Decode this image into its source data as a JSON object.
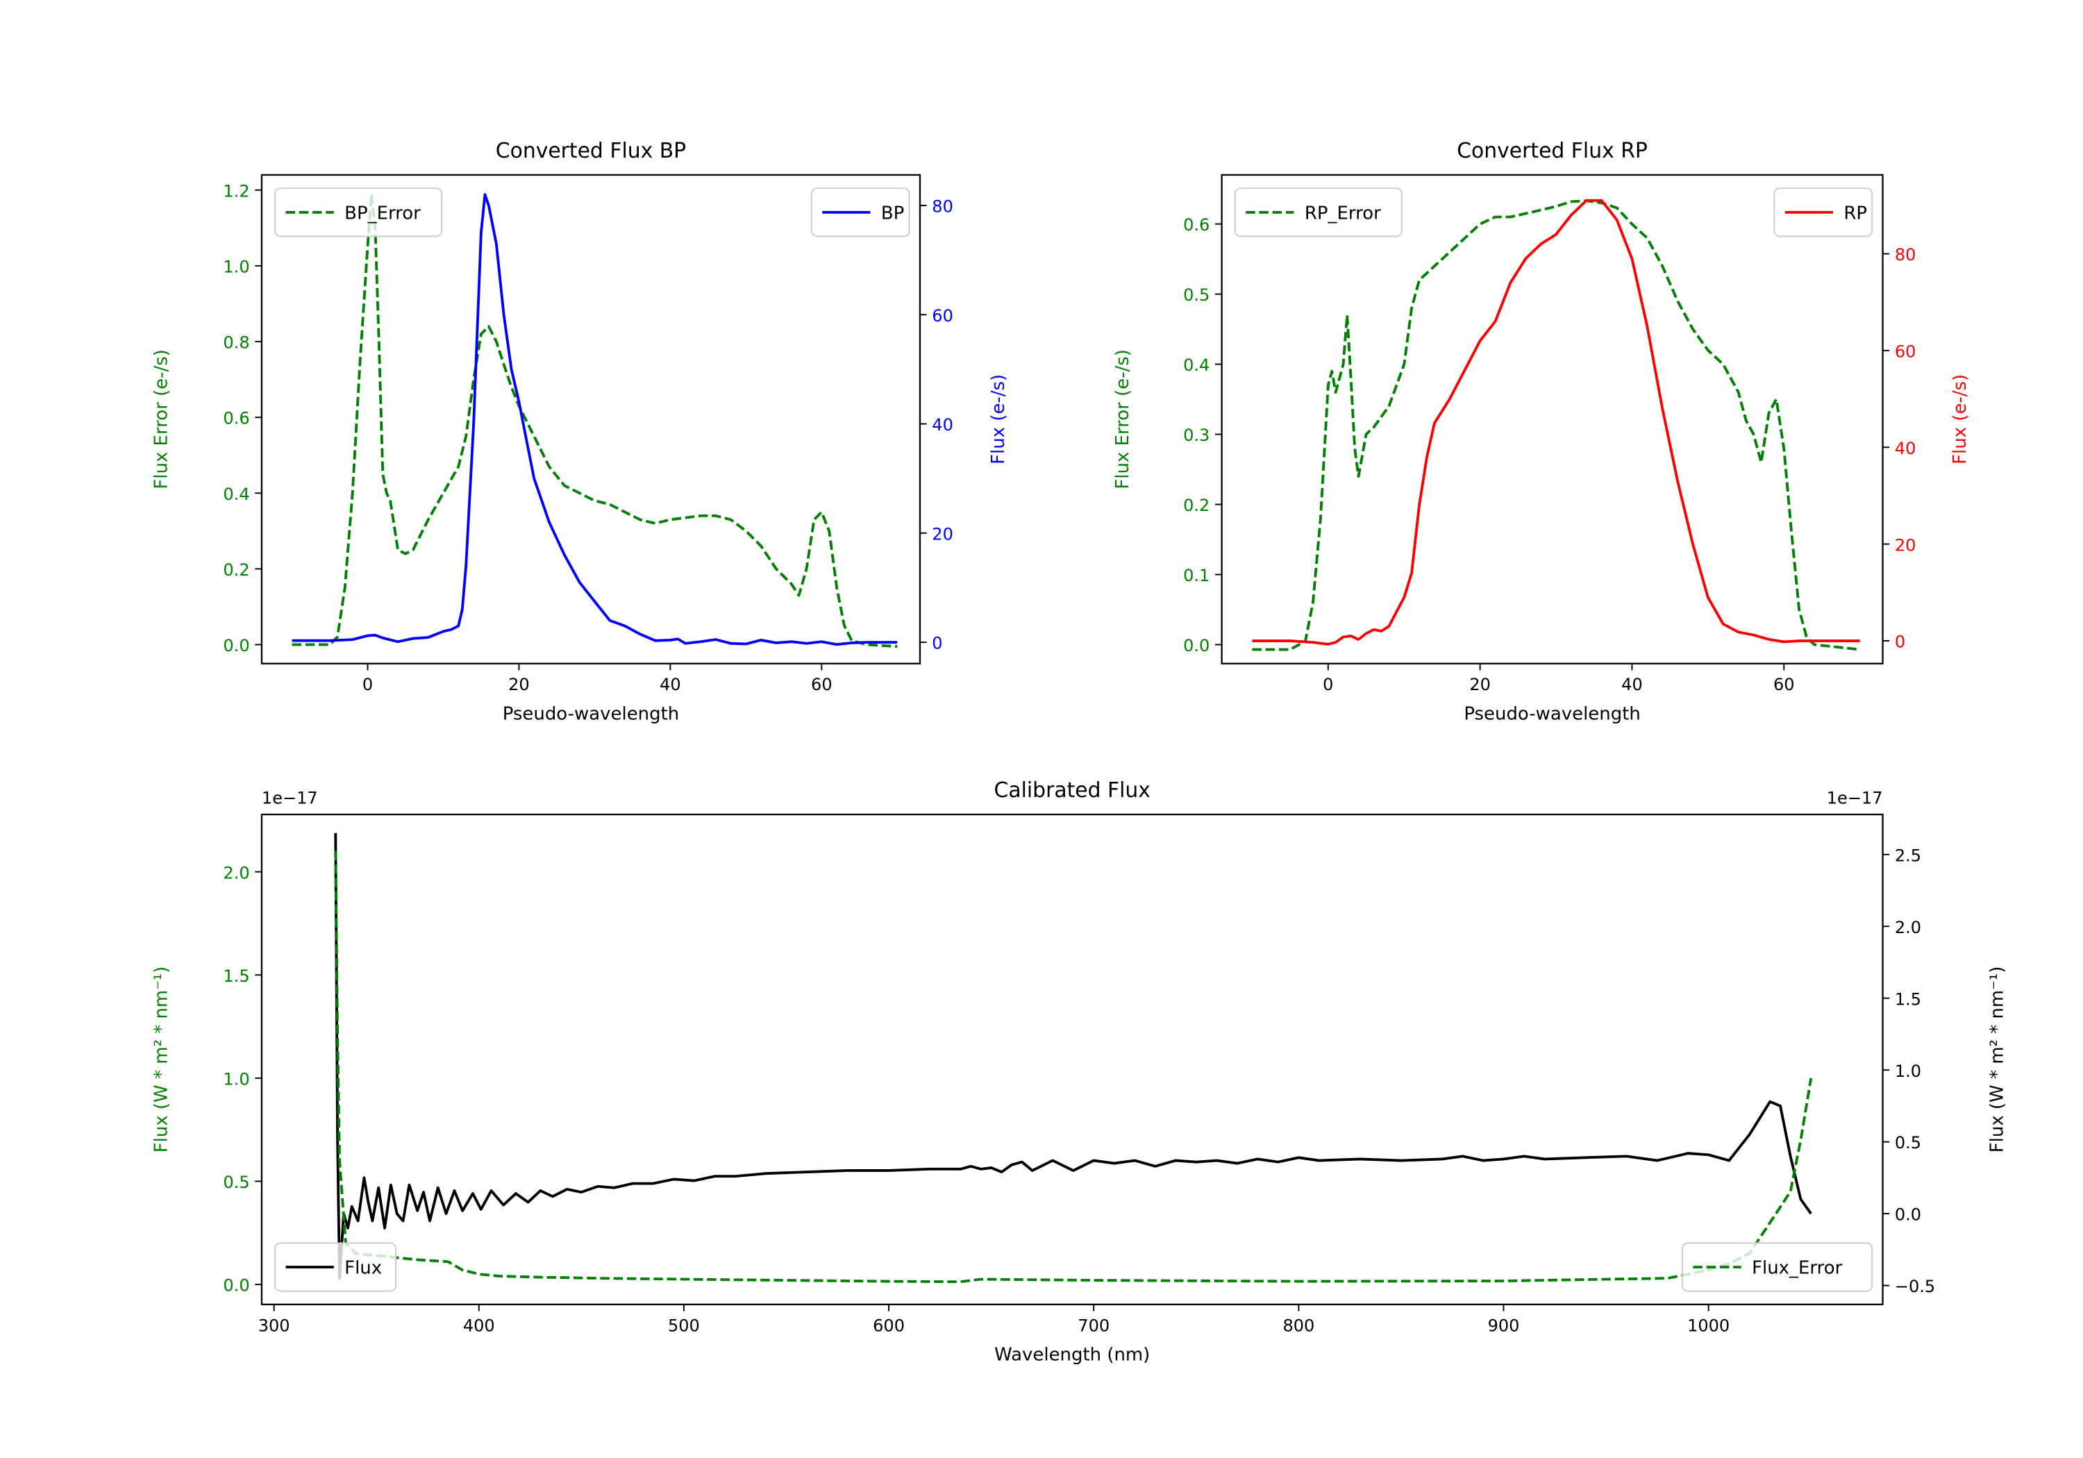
{
  "colors": {
    "bp": "#0000ff",
    "rp": "#ff0000",
    "error": "#008000",
    "flux": "#000000"
  },
  "chart_data": [
    {
      "type": "line",
      "title": "Converted Flux BP",
      "xlabel": "Pseudo-wavelength",
      "ylabel_left": "Flux Error (e-/s)",
      "ylabel_right": "Flux (e-/s)",
      "xlim": [
        -14,
        73
      ],
      "ylim_left": [
        -0.05,
        1.24
      ],
      "ylim_right": [
        -3.9,
        85.6
      ],
      "xticks": [
        0,
        20,
        40,
        60
      ],
      "yticks_left": [
        0.0,
        0.2,
        0.4,
        0.6,
        0.8,
        1.0,
        1.2
      ],
      "yticks_right": [
        0,
        20,
        40,
        60,
        80
      ],
      "xtick_labels": [
        "0",
        "20",
        "40",
        "60"
      ],
      "ytick_labels_left": [
        "0.0",
        "0.2",
        "0.4",
        "0.6",
        "0.8",
        "1.0",
        "1.2"
      ],
      "ytick_labels_right": [
        "0",
        "20",
        "40",
        "60",
        "80"
      ],
      "series": [
        {
          "name": "BP_Error",
          "axis": "left",
          "style": "dashed",
          "color": "#008000",
          "legend": "upper left",
          "x": [
            -10,
            -5,
            -4,
            -3,
            -2,
            -1,
            0,
            0.5,
            1,
            1.5,
            2,
            2.5,
            3,
            4,
            5,
            6,
            8,
            10,
            12,
            13,
            14,
            15,
            16,
            17,
            18,
            19,
            20,
            22,
            24,
            26,
            28,
            30,
            32,
            34,
            36,
            38,
            40,
            44,
            46,
            48,
            50,
            52,
            54,
            56,
            57,
            58,
            59,
            60,
            61,
            62,
            63,
            64,
            66,
            70
          ],
          "y": [
            0,
            0,
            0.02,
            0.15,
            0.4,
            0.75,
            1.05,
            1.19,
            1.1,
            0.8,
            0.45,
            0.4,
            0.38,
            0.25,
            0.24,
            0.25,
            0.33,
            0.4,
            0.47,
            0.55,
            0.7,
            0.82,
            0.84,
            0.8,
            0.74,
            0.68,
            0.63,
            0.55,
            0.47,
            0.42,
            0.4,
            0.38,
            0.37,
            0.35,
            0.33,
            0.32,
            0.33,
            0.34,
            0.34,
            0.33,
            0.3,
            0.26,
            0.2,
            0.16,
            0.13,
            0.2,
            0.33,
            0.35,
            0.3,
            0.15,
            0.05,
            0.01,
            0,
            -0.005
          ]
        },
        {
          "name": "BP",
          "axis": "right",
          "style": "solid",
          "color": "#0000ff",
          "legend": "upper right",
          "x": [
            -10,
            -5,
            -2,
            0,
            1,
            2,
            4,
            6,
            8,
            10,
            11,
            12,
            12.5,
            13,
            14,
            15,
            15.5,
            16,
            17,
            18,
            19,
            20,
            21,
            22,
            24,
            26,
            28,
            30,
            32,
            34,
            36,
            38,
            40,
            41,
            42,
            44,
            46,
            48,
            50,
            52,
            54,
            56,
            58,
            60,
            62,
            64,
            66,
            70
          ],
          "y": [
            0.3,
            0.3,
            0.5,
            1.2,
            1.3,
            0.8,
            0.1,
            0.7,
            0.9,
            2,
            2.3,
            3,
            6,
            14,
            40,
            75,
            82,
            80,
            73,
            60,
            50,
            44,
            37,
            30,
            22,
            16,
            11,
            7.5,
            4,
            3,
            1.5,
            0.3,
            0.4,
            0.6,
            -0.2,
            0.1,
            0.5,
            -0.2,
            -0.3,
            0.4,
            -0.1,
            0.1,
            -0.2,
            0.1,
            -0.4,
            -0.1,
            0,
            0
          ]
        }
      ]
    },
    {
      "type": "line",
      "title": "Converted Flux RP",
      "xlabel": "Pseudo-wavelength",
      "ylabel_left": "Flux Error (e-/s)",
      "ylabel_right": "Flux (e-/s)",
      "xlim": [
        -14,
        73
      ],
      "ylim_left": [
        -0.027,
        0.67
      ],
      "ylim_right": [
        -4.7,
        96.3
      ],
      "xticks": [
        0,
        20,
        40,
        60
      ],
      "yticks_left": [
        0.0,
        0.1,
        0.2,
        0.3,
        0.4,
        0.5,
        0.6
      ],
      "yticks_right": [
        0,
        20,
        40,
        60,
        80
      ],
      "xtick_labels": [
        "0",
        "20",
        "40",
        "60"
      ],
      "ytick_labels_left": [
        "0.0",
        "0.1",
        "0.2",
        "0.3",
        "0.4",
        "0.5",
        "0.6"
      ],
      "ytick_labels_right": [
        "0",
        "20",
        "40",
        "60",
        "80"
      ],
      "series": [
        {
          "name": "RP_Error",
          "axis": "left",
          "style": "dashed",
          "color": "#008000",
          "legend": "upper left",
          "x": [
            -10,
            -5,
            -3,
            -2,
            -1,
            0,
            0.5,
            1,
            2,
            2.5,
            3,
            3.5,
            4,
            5,
            6,
            8,
            10,
            11,
            12,
            14,
            16,
            18,
            20,
            22,
            24,
            26,
            28,
            30,
            32,
            34,
            36,
            38,
            40,
            42,
            44,
            46,
            48,
            50,
            52,
            54,
            55,
            56,
            57,
            58,
            59,
            60,
            61,
            62,
            63,
            64,
            70
          ],
          "y": [
            -0.007,
            -0.007,
            0.005,
            0.06,
            0.18,
            0.37,
            0.39,
            0.36,
            0.4,
            0.47,
            0.38,
            0.28,
            0.24,
            0.3,
            0.31,
            0.34,
            0.4,
            0.48,
            0.52,
            0.54,
            0.56,
            0.58,
            0.6,
            0.61,
            0.61,
            0.615,
            0.62,
            0.625,
            0.632,
            0.633,
            0.63,
            0.623,
            0.6,
            0.58,
            0.54,
            0.49,
            0.45,
            0.42,
            0.4,
            0.36,
            0.32,
            0.3,
            0.26,
            0.33,
            0.35,
            0.28,
            0.16,
            0.05,
            0.01,
            0,
            -0.007
          ]
        },
        {
          "name": "RP",
          "axis": "right",
          "style": "solid",
          "color": "#ff0000",
          "legend": "upper right",
          "x": [
            -10,
            -5,
            -2,
            0,
            1,
            2,
            3,
            4,
            5,
            6,
            7,
            8,
            9,
            10,
            11,
            12,
            13,
            14,
            16,
            18,
            20,
            22,
            24,
            26,
            28,
            30,
            32,
            34,
            36,
            38,
            40,
            42,
            44,
            46,
            48,
            50,
            52,
            54,
            56,
            58,
            60,
            62,
            70
          ],
          "y": [
            0,
            0,
            -0.3,
            -0.7,
            -0.3,
            0.8,
            1,
            0.3,
            1.5,
            2.3,
            2,
            3,
            6,
            9,
            14,
            28,
            38,
            45,
            50,
            56,
            62,
            66,
            74,
            79,
            82,
            84,
            88,
            91,
            91,
            87,
            79,
            65,
            48,
            33,
            20,
            9,
            3.5,
            1.8,
            1.2,
            0.3,
            -0.2,
            0,
            0
          ]
        }
      ]
    },
    {
      "type": "line",
      "title": "Calibrated Flux",
      "xlabel": "Wavelength (nm)",
      "ylabel_left": "Flux (W * m² * nm⁻¹)",
      "ylabel_right": "Flux (W * m² * nm⁻¹)",
      "offset_left": "1e−17",
      "offset_right": "1e−17",
      "xlim": [
        294,
        1085
      ],
      "ylim_left": [
        -0.097,
        2.278
      ],
      "ylim_right": [
        -0.632,
        2.779
      ],
      "xticks": [
        300,
        400,
        500,
        600,
        700,
        800,
        900,
        1000
      ],
      "yticks_left": [
        0.0,
        0.5,
        1.0,
        1.5,
        2.0
      ],
      "yticks_right": [
        -0.5,
        0.0,
        0.5,
        1.0,
        1.5,
        2.0,
        2.5
      ],
      "xtick_labels": [
        "300",
        "400",
        "500",
        "600",
        "700",
        "800",
        "900",
        "1000"
      ],
      "ytick_labels_left": [
        "0.0",
        "0.5",
        "1.0",
        "1.5",
        "2.0"
      ],
      "ytick_labels_right": [
        "−0.5",
        "0.0",
        "0.5",
        "1.0",
        "1.5",
        "2.0",
        "2.5"
      ],
      "series": [
        {
          "name": "Flux",
          "axis": "right",
          "style": "solid",
          "color": "#000000",
          "legend": "lower left",
          "x": [
            330,
            331,
            332,
            334,
            336,
            338,
            341,
            344,
            346,
            348,
            351,
            354,
            357,
            360,
            363,
            366,
            370,
            373,
            376,
            380,
            384,
            388,
            392,
            397,
            401,
            406,
            412,
            418,
            424,
            430,
            436,
            443,
            450,
            458,
            466,
            475,
            485,
            495,
            505,
            515,
            525,
            540,
            560,
            580,
            600,
            620,
            635,
            640,
            645,
            650,
            655,
            660,
            665,
            670,
            680,
            690,
            700,
            710,
            720,
            730,
            740,
            750,
            760,
            770,
            780,
            790,
            800,
            810,
            830,
            850,
            870,
            880,
            890,
            900,
            910,
            920,
            940,
            960,
            975,
            990,
            1000,
            1010,
            1020,
            1030,
            1035,
            1040,
            1045,
            1050
          ],
          "y": [
            2.65,
            0.5,
            -0.45,
            0,
            -0.1,
            0.05,
            -0.05,
            0.25,
            0.08,
            -0.05,
            0.18,
            -0.1,
            0.2,
            0,
            -0.05,
            0.2,
            0.02,
            0.15,
            -0.05,
            0.18,
            0,
            0.16,
            0.02,
            0.14,
            0.03,
            0.16,
            0.06,
            0.14,
            0.08,
            0.16,
            0.12,
            0.17,
            0.15,
            0.19,
            0.18,
            0.21,
            0.21,
            0.24,
            0.23,
            0.26,
            0.26,
            0.28,
            0.29,
            0.3,
            0.3,
            0.31,
            0.31,
            0.33,
            0.31,
            0.32,
            0.29,
            0.34,
            0.36,
            0.3,
            0.37,
            0.3,
            0.37,
            0.35,
            0.37,
            0.33,
            0.37,
            0.36,
            0.37,
            0.35,
            0.38,
            0.36,
            0.39,
            0.37,
            0.38,
            0.37,
            0.38,
            0.4,
            0.37,
            0.38,
            0.4,
            0.38,
            0.39,
            0.4,
            0.37,
            0.42,
            0.41,
            0.37,
            0.55,
            0.78,
            0.75,
            0.4,
            0.1,
            0
          ]
        },
        {
          "name": "Flux_Error",
          "axis": "left",
          "style": "dashed",
          "color": "#008000",
          "legend": "lower right",
          "x": [
            330,
            331,
            332,
            335,
            340,
            350,
            370,
            385,
            392,
            400,
            410,
            430,
            460,
            500,
            550,
            600,
            635,
            645,
            700,
            800,
            900,
            950,
            980,
            1000,
            1010,
            1020,
            1030,
            1040,
            1045,
            1050
          ],
          "y": [
            2.1,
            1.2,
            0.6,
            0.2,
            0.15,
            0.14,
            0.12,
            0.11,
            0.07,
            0.05,
            0.04,
            0.035,
            0.03,
            0.025,
            0.02,
            0.015,
            0.013,
            0.025,
            0.02,
            0.015,
            0.017,
            0.025,
            0.03,
            0.07,
            0.1,
            0.15,
            0.3,
            0.45,
            0.7,
            1.0
          ]
        }
      ]
    }
  ]
}
